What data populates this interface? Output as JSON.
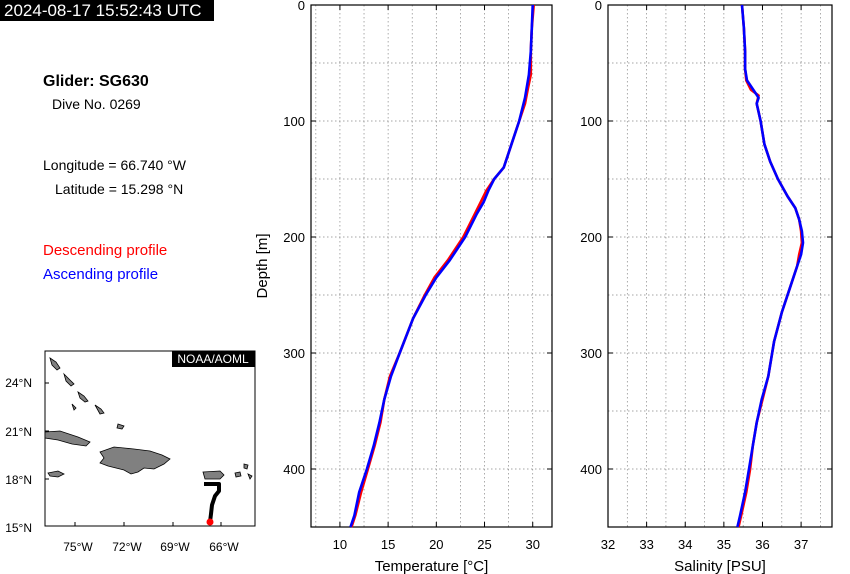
{
  "header": {
    "timestamp": "2024-08-17 15:52:43 UTC"
  },
  "info": {
    "glider": "Glider: SG630",
    "dive": "Dive No. 0269",
    "longitude": "Longitude = 66.740 °W",
    "latitude": "Latitude = 15.298 °N",
    "descending_label": "Descending profile",
    "ascending_label": "Ascending profile"
  },
  "colors": {
    "descending": "#ff0000",
    "ascending": "#0000ff",
    "track": "#000000",
    "land": "#808080"
  },
  "map": {
    "credit": "NOAA/AOML",
    "lat_ticks": [
      "24°N",
      "21°N",
      "18°N",
      "15°N"
    ],
    "lon_ticks": [
      "75°W",
      "72°W",
      "69°W",
      "66°W"
    ],
    "glider_position": {
      "lon": -66.74,
      "lat": 15.298
    }
  },
  "chart_data": [
    {
      "type": "line",
      "ylabel": "Depth [m]",
      "xlabel": "Temperature [°C]",
      "xlim": [
        7,
        32
      ],
      "ylim": [
        450,
        0
      ],
      "y_inverted": true,
      "x_ticks": [
        10,
        15,
        20,
        25,
        30
      ],
      "y_ticks": [
        0,
        100,
        200,
        300,
        400
      ],
      "grid": true,
      "series": [
        {
          "name": "Descending profile",
          "x": [
            30.1,
            29.9,
            29.8,
            29.8,
            29.5,
            29.2,
            28.6,
            27.8,
            27.0,
            26.0,
            25.2,
            24.6,
            24.0,
            23.4,
            22.8,
            22.0,
            21.2,
            19.8,
            18.8,
            17.6,
            16.2,
            15.2,
            14.6,
            14.2,
            13.6,
            12.9,
            12.2,
            11.6,
            11.2
          ],
          "y": [
            0,
            20,
            40,
            60,
            72,
            85,
            100,
            120,
            140,
            150,
            160,
            170,
            180,
            190,
            200,
            210,
            220,
            235,
            250,
            270,
            300,
            320,
            340,
            360,
            380,
            400,
            420,
            440,
            450
          ]
        },
        {
          "name": "Ascending profile",
          "x": [
            30.0,
            29.9,
            29.8,
            29.6,
            29.2,
            28.6,
            27.8,
            27.0,
            26.0,
            25.4,
            24.9,
            24.2,
            23.6,
            23.0,
            22.2,
            21.4,
            20.0,
            18.9,
            17.6,
            16.2,
            15.3,
            14.6,
            14.1,
            13.5,
            12.8,
            12.0,
            11.5,
            11.1
          ],
          "y": [
            0,
            20,
            40,
            60,
            80,
            100,
            120,
            140,
            150,
            160,
            170,
            180,
            190,
            200,
            210,
            220,
            235,
            250,
            270,
            300,
            320,
            340,
            360,
            380,
            400,
            420,
            440,
            450
          ]
        }
      ]
    },
    {
      "type": "line",
      "ylabel": "",
      "xlabel": "Salinity [PSU]",
      "xlim": [
        32,
        37.8
      ],
      "ylim": [
        450,
        0
      ],
      "y_inverted": true,
      "x_ticks": [
        32,
        33,
        34,
        35,
        36,
        37
      ],
      "y_ticks": [
        0,
        100,
        200,
        300,
        400
      ],
      "grid": true,
      "series": [
        {
          "name": "Descending profile",
          "x": [
            35.47,
            35.52,
            35.55,
            35.55,
            35.58,
            35.7,
            35.9,
            35.85,
            35.95,
            36.05,
            36.2,
            36.4,
            36.65,
            36.85,
            36.95,
            37.0,
            37.02,
            36.95,
            36.9,
            36.7,
            36.5,
            36.3,
            36.15,
            36.0,
            35.85,
            35.75,
            35.68,
            35.58,
            35.45,
            35.38
          ],
          "y": [
            0,
            20,
            40,
            55,
            65,
            73,
            78,
            85,
            100,
            120,
            135,
            150,
            165,
            175,
            185,
            195,
            205,
            215,
            225,
            245,
            265,
            290,
            320,
            340,
            360,
            380,
            400,
            420,
            440,
            450
          ]
        },
        {
          "name": "Ascending profile",
          "x": [
            35.47,
            35.52,
            35.55,
            35.55,
            35.6,
            35.8,
            35.9,
            35.85,
            35.95,
            36.05,
            36.2,
            36.4,
            36.65,
            36.85,
            36.95,
            37.02,
            37.05,
            37.0,
            36.9,
            36.7,
            36.5,
            36.3,
            36.15,
            35.98,
            35.85,
            35.75,
            35.65,
            35.55,
            35.42,
            35.35
          ],
          "y": [
            0,
            20,
            40,
            55,
            65,
            75,
            80,
            85,
            100,
            120,
            135,
            150,
            165,
            175,
            185,
            195,
            205,
            215,
            225,
            245,
            265,
            290,
            320,
            340,
            360,
            380,
            400,
            420,
            440,
            450
          ]
        }
      ]
    }
  ]
}
